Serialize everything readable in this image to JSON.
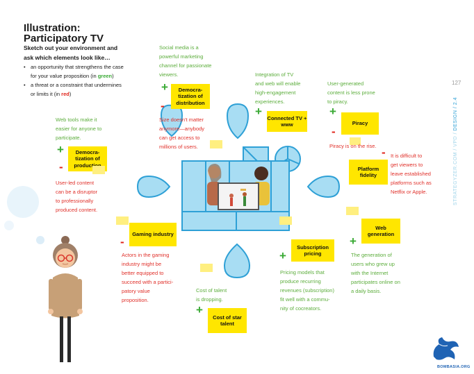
{
  "header": {
    "title_line1": "Illustration:",
    "title_line2": "Participatory TV",
    "intro_line1": "Sketch out your environment and",
    "intro_line2": "ask which elements look like…",
    "bullet1_line1": "an opportunity that strengthens the case",
    "bullet1_line2_pre": "for your value proposition (in ",
    "bullet1_word": "green",
    "bullet1_line2_post": ")",
    "bullet2_line1": "a threat or a constraint that undermines",
    "bullet2_line2_pre": "or limits it (in ",
    "bullet2_word": "red",
    "bullet2_line2_post": ")"
  },
  "sidebar": {
    "page_number": "127",
    "source_a": "STRATEGYZER.COM / ",
    "source_b": "VPD / ",
    "source_c": "DESIGN / 2.4"
  },
  "stickies": {
    "democratization_distribution": "Democra- tization of distribution",
    "connected_tv": "Connected TV + www",
    "piracy": "Piracy",
    "democratization_production": "Democra- tization of production",
    "platform_fidelity": "Platform fidelity",
    "gaming_industry": "Gaming industry",
    "web_generation": "Web generation",
    "subscription_pricing": "Subscription pricing",
    "cost_star_talent": "Cost of star talent"
  },
  "signs": {
    "plus": "+",
    "minus": "-"
  },
  "notes": {
    "social_media": [
      "Social media is a",
      "powerful marketing",
      "channel for passionate",
      "viewers."
    ],
    "integration_tv": [
      "Integration of TV",
      "and web will enable",
      "high-engagement",
      "experiences."
    ],
    "user_generated": [
      "User-generated",
      "content is less prone",
      "to piracy."
    ],
    "web_tools": [
      "Web tools make it",
      "easier for anyone to",
      "participate."
    ],
    "size_matter": [
      "Size doesn't matter",
      "anymore—anybody",
      "can get access to",
      "millions of users."
    ],
    "piracy_rise": [
      "Piracy is on the rise."
    ],
    "difficult": [
      "It is difficult to",
      "get viewers to",
      "leave established",
      "platforms such as",
      "Netflix or Apple."
    ],
    "user_led": [
      "User-led content",
      "can be a disruptor",
      "to professionally",
      "produced content."
    ],
    "actors": [
      "Actors in the gaming",
      "industry might be",
      "better equipped to",
      "succeed with a partici-",
      "patory value",
      "proposition."
    ],
    "cost_talent": [
      "Cost of talent",
      "is dropping."
    ],
    "pricing_models": [
      "Pricing models that",
      "produce recurring",
      "revenues (subscription)",
      "fit well with a commu-",
      "nity of cocreators."
    ],
    "generation": [
      "The generation of",
      "users who grew up",
      "with the Internet",
      "participates online on",
      "a daily basis."
    ]
  },
  "logo": {
    "text": "BOMBASIA.ORG"
  },
  "colors": {
    "green": "#3aaa35",
    "red": "#e0251b",
    "sticky": "#ffe600",
    "blue": "#5bc0e8"
  }
}
